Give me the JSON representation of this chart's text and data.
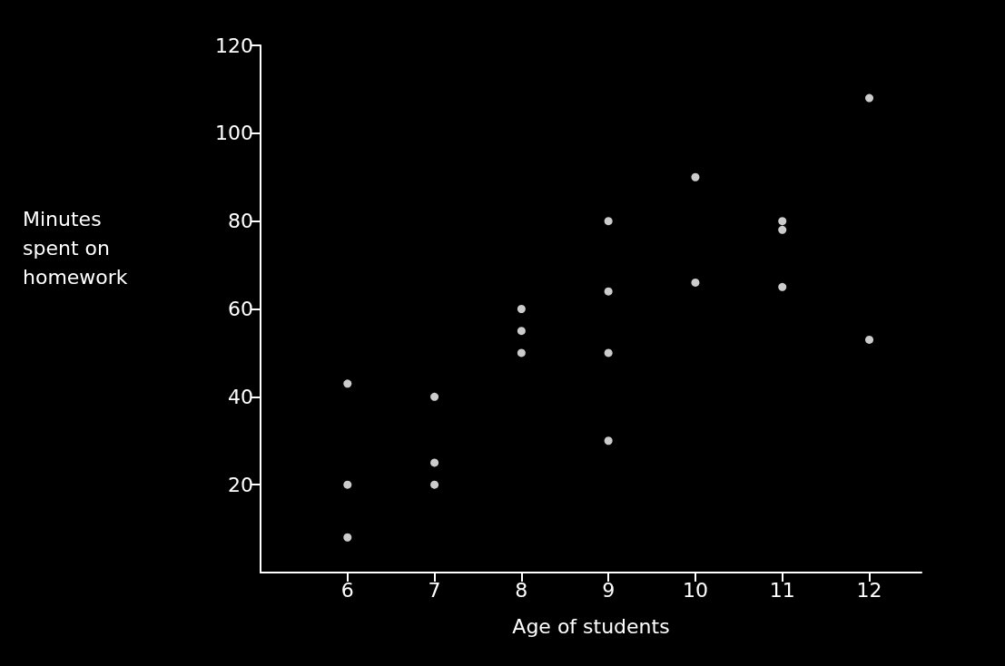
{
  "chart_data": {
    "type": "scatter",
    "xlabel": "Age of students",
    "ylabel": "Minutes spent on homework",
    "x": [
      6,
      6,
      6,
      7,
      7,
      7,
      8,
      8,
      8,
      9,
      9,
      9,
      9,
      10,
      10,
      11,
      11,
      11,
      12,
      12
    ],
    "values": [
      43,
      20,
      8,
      40,
      25,
      20,
      60,
      55,
      50,
      80,
      64,
      50,
      30,
      90,
      66,
      80,
      78,
      65,
      108,
      53
    ],
    "color": "#ffffff",
    "marker": "circle",
    "xlim": [
      5,
      12.6
    ],
    "xticks": [
      6,
      7,
      8,
      9,
      10,
      11,
      12
    ],
    "ylim": [
      0,
      120
    ],
    "yticks": [
      20,
      40,
      60,
      80,
      100,
      120
    ],
    "grid": false
  }
}
